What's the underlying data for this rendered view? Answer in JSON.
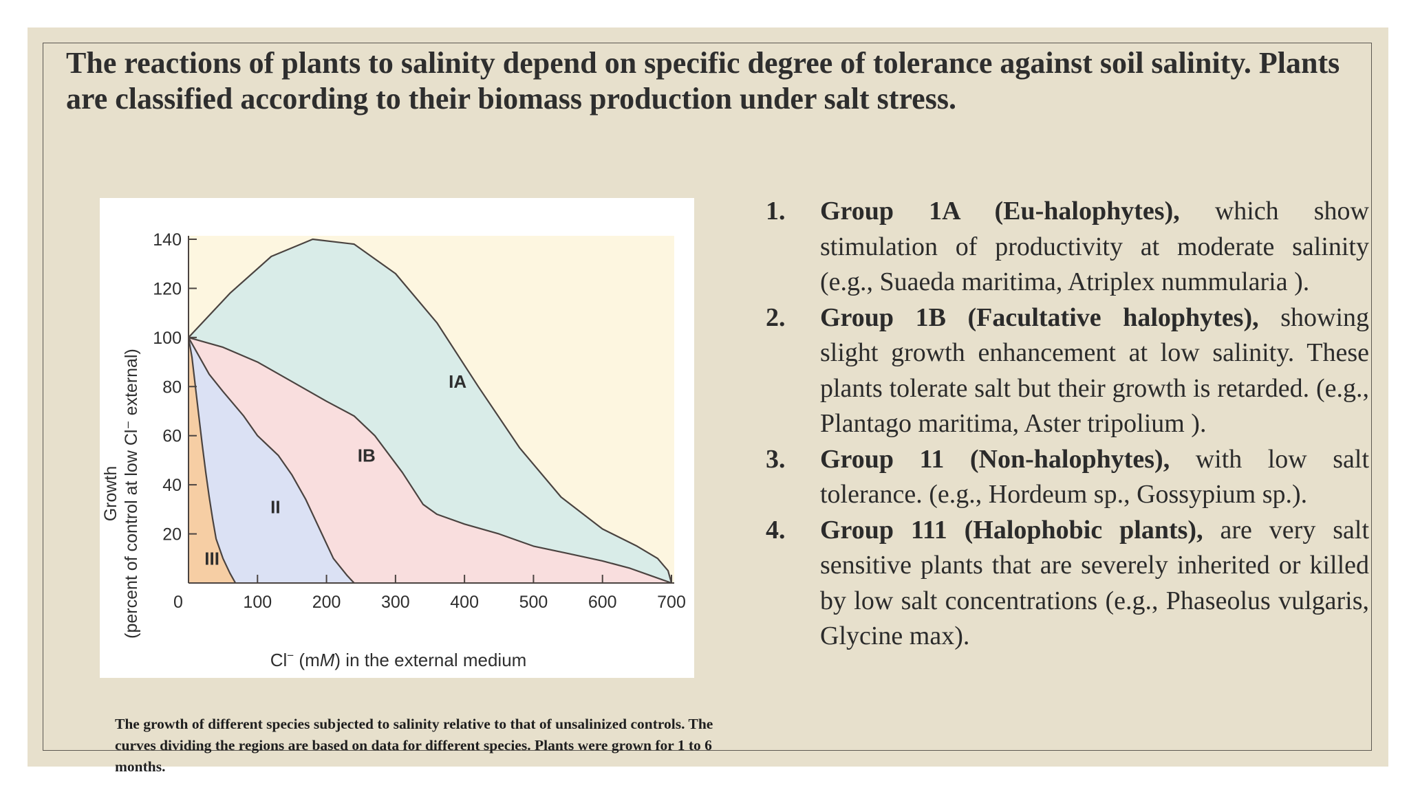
{
  "heading": "The reactions of plants to salinity depend on specific degree of tolerance against soil salinity. Plants are classified according to their biomass production under salt stress.",
  "caption": "The growth of different species subjected to salinity relative to that of unsalinized controls. The curves dividing the regions are based on data for different species. Plants were grown for 1 to 6 months.",
  "groups": [
    {
      "number": "1.",
      "name": "Group 1A (Eu-halophytes),",
      "text": " which show stimulation of productivity at moderate salinity (e.g., Suaeda maritima, Atriplex nummularia )."
    },
    {
      "number": "2.",
      "name": "Group 1B (Facultative halophytes),",
      "text": " showing slight growth enhancement at low salinity. These plants tolerate salt but their growth is retarded. (e.g., Plantago maritima, Aster tripolium )."
    },
    {
      "number": "3.",
      "name": "Group 11 (Non-halophytes),",
      "text": " with low salt tolerance. (e.g., Hordeum sp., Gossypium sp.)."
    },
    {
      "number": "4.",
      "name": "Group 111 (Halophobic plants),",
      "text": " are very salt sensitive plants that are severely inherited or killed by low salt concentrations (e.g., Phaseolus vulgaris, Glycine max)."
    }
  ],
  "chart_data": {
    "type": "area",
    "xlabel_prefix": "Cl",
    "xlabel_sup": "−",
    "xlabel_mid": " (m",
    "xlabel_unit": "M",
    "xlabel_suffix": ") in the external medium",
    "ylabel_line1": "Growth",
    "ylabel_line2": "(percent of control at low Cl⁻ external)",
    "xlim": [
      0,
      700
    ],
    "ylim": [
      0,
      140
    ],
    "x_ticks": [
      0,
      100,
      200,
      300,
      400,
      500,
      600,
      700
    ],
    "y_ticks": [
      20,
      40,
      60,
      80,
      100,
      120,
      140
    ],
    "background_color": "#fdf6e0",
    "regions": [
      {
        "label": "IA",
        "color": "#d9ece8",
        "label_at": [
          390,
          82
        ],
        "boundary": [
          [
            0,
            100
          ],
          [
            60,
            118
          ],
          [
            120,
            133
          ],
          [
            180,
            140
          ],
          [
            240,
            138
          ],
          [
            300,
            126
          ],
          [
            360,
            106
          ],
          [
            420,
            80
          ],
          [
            480,
            55
          ],
          [
            540,
            35
          ],
          [
            600,
            22
          ],
          [
            650,
            15
          ],
          [
            680,
            10
          ],
          [
            695,
            5
          ],
          [
            700,
            0
          ]
        ]
      },
      {
        "label": "IB",
        "color": "#f9dede",
        "label_at": [
          258,
          52
        ],
        "boundary": [
          [
            0,
            100
          ],
          [
            50,
            96
          ],
          [
            100,
            90
          ],
          [
            150,
            82
          ],
          [
            200,
            74
          ],
          [
            240,
            68
          ],
          [
            270,
            60
          ],
          [
            310,
            45
          ],
          [
            340,
            32
          ],
          [
            360,
            28
          ],
          [
            400,
            24
          ],
          [
            450,
            20
          ],
          [
            500,
            15
          ],
          [
            550,
            12
          ],
          [
            600,
            9
          ],
          [
            640,
            6
          ],
          [
            670,
            3
          ],
          [
            700,
            0
          ]
        ]
      },
      {
        "label": "II",
        "color": "#dbe1f4",
        "label_at": [
          126,
          31
        ],
        "boundary": [
          [
            0,
            100
          ],
          [
            10,
            95
          ],
          [
            30,
            85
          ],
          [
            50,
            78
          ],
          [
            80,
            68
          ],
          [
            100,
            60
          ],
          [
            130,
            52
          ],
          [
            150,
            44
          ],
          [
            170,
            34
          ],
          [
            190,
            22
          ],
          [
            210,
            10
          ],
          [
            230,
            3
          ],
          [
            240,
            0
          ]
        ]
      },
      {
        "label": "III",
        "color": "#f6cea4",
        "label_at": [
          34,
          10
        ],
        "boundary": [
          [
            0,
            100
          ],
          [
            5,
            92
          ],
          [
            10,
            80
          ],
          [
            15,
            68
          ],
          [
            20,
            56
          ],
          [
            25,
            45
          ],
          [
            30,
            35
          ],
          [
            35,
            26
          ],
          [
            40,
            18
          ],
          [
            50,
            10
          ],
          [
            60,
            4
          ],
          [
            68,
            0
          ]
        ]
      }
    ]
  }
}
